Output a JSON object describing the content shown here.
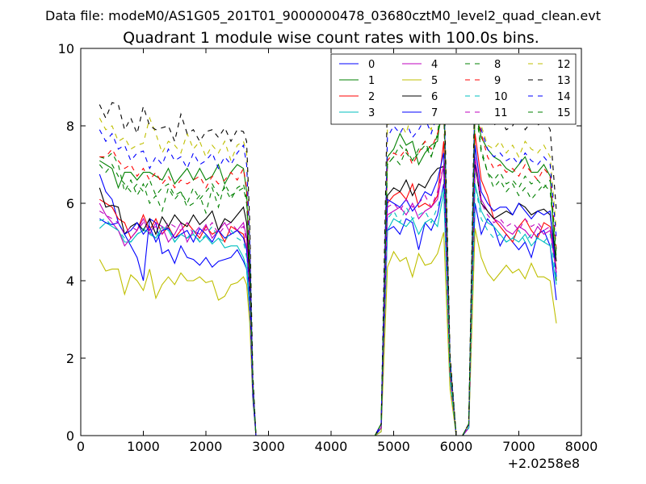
{
  "figure": {
    "suptitle": "Data file: modeM0/AS1G05_201T01_9000000478_03680cztM0_level2_quad_clean.evt"
  },
  "chart_data": {
    "type": "line",
    "title": "Quadrant 1 module wise count rates with 100.0s bins.",
    "xlabel": "",
    "ylabel": "",
    "x_offset_label": "+2.0258e8",
    "xlim": [
      0,
      8000
    ],
    "ylim": [
      0,
      10
    ],
    "x_ticks": [
      0,
      1000,
      2000,
      3000,
      4000,
      5000,
      6000,
      7000,
      8000
    ],
    "y_ticks": [
      0,
      2,
      4,
      6,
      8,
      10
    ],
    "grid": false,
    "legend_position": "top-right",
    "legend_columns": 4,
    "x": [
      300,
      400,
      500,
      600,
      700,
      800,
      900,
      1000,
      1100,
      1200,
      1300,
      1400,
      1500,
      1600,
      1700,
      1800,
      1900,
      2000,
      2100,
      2200,
      2300,
      2400,
      2500,
      2600,
      2650,
      2700,
      2750,
      2800,
      2900,
      3000,
      3500,
      4000,
      4500,
      4700,
      4800,
      4900,
      5000,
      5100,
      5200,
      5300,
      5400,
      5500,
      5600,
      5700,
      5800,
      5900,
      6000,
      6100,
      6200,
      6300,
      6400,
      6500,
      6600,
      6700,
      6800,
      6900,
      7000,
      7100,
      7200,
      7300,
      7400,
      7500,
      7600
    ],
    "series": [
      {
        "name": "0",
        "color": "#0000ff",
        "dash": "solid",
        "values": [
          6.75,
          6.3,
          6.1,
          5.5,
          5.2,
          4.9,
          4.6,
          4.0,
          5.6,
          5.5,
          4.7,
          4.8,
          4.45,
          4.9,
          4.6,
          4.55,
          4.4,
          4.6,
          4.35,
          4.5,
          4.55,
          4.6,
          4.8,
          4.5,
          4.3,
          3.2,
          1.0,
          0,
          0,
          0,
          0,
          0,
          0,
          0,
          0.1,
          5.3,
          5.4,
          5.2,
          5.6,
          5.5,
          4.8,
          5.5,
          5.3,
          5.7,
          6.5,
          1.5,
          0,
          0,
          0.2,
          6.0,
          5.2,
          5.6,
          5.4,
          4.9,
          5.2,
          5.0,
          4.8,
          5.0,
          4.6,
          5.2,
          5.3,
          4.9,
          3.5
        ]
      },
      {
        "name": "1",
        "color": "#008000",
        "dash": "solid",
        "values": [
          7.1,
          7.0,
          6.9,
          6.4,
          6.8,
          6.8,
          6.6,
          6.8,
          6.8,
          6.7,
          6.6,
          6.9,
          6.5,
          6.7,
          6.9,
          6.6,
          6.9,
          6.6,
          6.7,
          7.0,
          6.5,
          6.8,
          7.0,
          6.9,
          6.3,
          4.2,
          1.2,
          0,
          0,
          0,
          0,
          0,
          0,
          0,
          0.3,
          7.2,
          7.4,
          7.8,
          7.5,
          7.6,
          7.0,
          7.3,
          7.5,
          7.6,
          9.0,
          1.8,
          0,
          0,
          0.3,
          8.5,
          7.7,
          7.4,
          7.2,
          7.1,
          6.9,
          6.8,
          7.0,
          7.2,
          6.8,
          6.8,
          7.0,
          6.7,
          4.0
        ]
      },
      {
        "name": "2",
        "color": "#ff0000",
        "dash": "solid",
        "values": [
          6.1,
          6.0,
          5.9,
          5.6,
          5.5,
          5.1,
          5.3,
          5.7,
          5.3,
          5.6,
          5.2,
          5.4,
          5.1,
          5.3,
          5.5,
          5.3,
          5.1,
          5.4,
          5.2,
          5.3,
          5.0,
          5.4,
          5.3,
          5.2,
          4.8,
          3.6,
          1.1,
          0,
          0,
          0,
          0,
          0,
          0,
          0,
          0.2,
          6.0,
          6.2,
          6.3,
          6.1,
          6.5,
          5.9,
          6.0,
          5.9,
          6.2,
          7.6,
          1.6,
          0,
          0,
          0.2,
          7.8,
          6.6,
          6.2,
          5.6,
          5.4,
          5.2,
          5.0,
          5.4,
          5.6,
          5.3,
          5.1,
          5.5,
          5.4,
          4.3
        ]
      },
      {
        "name": "3",
        "color": "#00bfbf",
        "dash": "solid",
        "values": [
          5.35,
          5.5,
          5.4,
          5.3,
          5.0,
          5.0,
          5.2,
          5.3,
          5.25,
          5.1,
          5.4,
          5.3,
          5.0,
          5.2,
          5.1,
          5.2,
          5.0,
          5.15,
          4.95,
          5.1,
          4.85,
          4.9,
          4.9,
          4.6,
          4.3,
          3.3,
          1.0,
          0,
          0,
          0,
          0,
          0,
          0,
          0,
          0.1,
          5.3,
          5.6,
          5.5,
          5.4,
          5.6,
          5.2,
          5.5,
          5.6,
          5.4,
          6.3,
          1.5,
          0,
          0,
          0.2,
          6.5,
          5.8,
          5.5,
          5.4,
          5.2,
          5.0,
          5.1,
          5.0,
          5.2,
          4.9,
          5.1,
          5.0,
          4.9,
          3.9
        ]
      },
      {
        "name": "4",
        "color": "#bf00bf",
        "dash": "solid",
        "values": [
          6.0,
          5.7,
          5.5,
          5.3,
          4.9,
          5.1,
          5.3,
          5.6,
          5.2,
          5.5,
          5.4,
          5.0,
          5.2,
          5.5,
          5.0,
          5.3,
          5.2,
          5.45,
          5.1,
          5.3,
          5.5,
          5.2,
          5.3,
          5.5,
          5.1,
          3.8,
          1.1,
          0,
          0,
          0,
          0,
          0,
          0,
          0,
          0.2,
          5.7,
          5.8,
          5.9,
          5.7,
          6.0,
          5.6,
          5.8,
          5.9,
          6.1,
          7.0,
          1.6,
          0,
          0,
          0.2,
          7.2,
          6.1,
          5.8,
          5.6,
          5.5,
          5.3,
          5.2,
          5.4,
          5.3,
          5.1,
          5.4,
          5.2,
          5.3,
          4.2
        ]
      },
      {
        "name": "5",
        "color": "#bfbf00",
        "dash": "solid",
        "values": [
          4.55,
          4.25,
          4.3,
          4.3,
          3.65,
          4.15,
          4.0,
          3.75,
          4.3,
          3.55,
          3.9,
          4.1,
          3.9,
          4.2,
          4.0,
          4.0,
          4.1,
          3.95,
          4.0,
          3.5,
          3.6,
          3.9,
          3.95,
          4.1,
          3.9,
          2.9,
          0.9,
          0,
          0,
          0,
          0,
          0,
          0,
          0,
          0.1,
          4.35,
          4.75,
          4.5,
          4.6,
          4.1,
          4.7,
          4.4,
          4.45,
          4.7,
          5.25,
          1.2,
          0,
          0,
          0.2,
          5.35,
          4.6,
          4.2,
          4.0,
          4.2,
          4.4,
          4.2,
          4.3,
          4.05,
          4.45,
          4.1,
          4.1,
          4.0,
          2.9
        ]
      },
      {
        "name": "6",
        "color": "#000000",
        "dash": "solid",
        "values": [
          6.4,
          5.9,
          5.95,
          5.9,
          5.2,
          5.4,
          5.5,
          5.3,
          5.6,
          5.2,
          5.65,
          5.4,
          5.7,
          5.5,
          5.4,
          5.7,
          5.45,
          5.6,
          5.8,
          5.3,
          5.6,
          5.5,
          5.7,
          5.9,
          5.5,
          4.0,
          1.2,
          0,
          0,
          0,
          0,
          0,
          0,
          0,
          0.2,
          6.2,
          6.4,
          6.3,
          6.6,
          6.2,
          6.5,
          6.4,
          6.7,
          6.9,
          6.95,
          1.7,
          0,
          0,
          0.3,
          7.0,
          6.0,
          5.8,
          5.6,
          5.7,
          5.8,
          5.7,
          6.0,
          5.9,
          5.7,
          5.8,
          5.85,
          5.7,
          4.5
        ]
      },
      {
        "name": "7",
        "color": "#0000ff",
        "dash": "solid",
        "values": [
          5.6,
          5.5,
          5.45,
          5.5,
          5.2,
          5.3,
          5.5,
          5.2,
          5.4,
          5.0,
          5.3,
          5.35,
          5.1,
          5.2,
          5.3,
          5.0,
          5.35,
          5.2,
          5.0,
          5.3,
          5.1,
          5.2,
          5.3,
          5.1,
          4.8,
          3.5,
          1.0,
          0,
          0,
          0,
          0,
          0,
          0,
          0,
          0.2,
          6.1,
          6.0,
          5.9,
          6.1,
          5.8,
          6.0,
          6.3,
          6.2,
          6.6,
          7.3,
          1.6,
          0,
          0,
          0.2,
          7.5,
          6.3,
          6.0,
          5.8,
          5.9,
          5.9,
          5.7,
          6.0,
          5.8,
          5.6,
          5.8,
          5.7,
          5.8,
          4.1
        ]
      },
      {
        "name": "8",
        "color": "#008000",
        "dash": "dashed",
        "values": [
          7.2,
          7.15,
          7.3,
          7.0,
          6.3,
          6.6,
          6.2,
          6.5,
          6.0,
          6.2,
          5.8,
          6.4,
          6.1,
          6.3,
          5.9,
          6.0,
          6.2,
          5.75,
          6.4,
          5.9,
          6.5,
          6.2,
          6.3,
          6.4,
          6.0,
          4.5,
          1.3,
          0,
          0,
          0,
          0,
          0,
          0,
          0,
          0.3,
          7.0,
          7.2,
          7.5,
          7.3,
          7.1,
          7.4,
          7.6,
          7.2,
          7.8,
          9.0,
          1.9,
          0,
          0,
          0.3,
          8.7,
          7.4,
          6.8,
          6.4,
          6.6,
          6.3,
          6.5,
          6.2,
          6.4,
          6.1,
          6.3,
          6.5,
          6.3,
          4.6
        ]
      },
      {
        "name": "9",
        "color": "#ff0000",
        "dash": "dashed",
        "values": [
          7.2,
          7.2,
          7.4,
          7.1,
          6.9,
          7.0,
          6.7,
          6.9,
          6.6,
          6.8,
          6.5,
          6.7,
          6.4,
          6.6,
          6.5,
          6.6,
          6.7,
          6.4,
          6.7,
          6.5,
          6.6,
          6.8,
          6.6,
          6.9,
          6.4,
          4.6,
          1.3,
          0,
          0,
          0,
          0,
          0,
          0,
          0,
          0.3,
          7.1,
          7.3,
          7.2,
          7.4,
          7.0,
          7.3,
          7.6,
          7.4,
          7.8,
          8.4,
          1.9,
          0,
          0,
          0.3,
          8.6,
          7.8,
          7.2,
          6.9,
          7.0,
          6.8,
          6.9,
          6.7,
          7.0,
          6.8,
          6.6,
          6.9,
          6.7,
          4.8
        ]
      },
      {
        "name": "10",
        "color": "#00bfbf",
        "dash": "dashed",
        "values": [
          5.55,
          5.6,
          5.4,
          5.3,
          5.1,
          5.0,
          5.2,
          5.35,
          5.2,
          5.1,
          5.3,
          5.4,
          5.0,
          5.2,
          5.1,
          5.3,
          5.0,
          5.2,
          5.4,
          5.1,
          5.0,
          5.3,
          5.1,
          5.0,
          4.6,
          3.4,
          1.0,
          0,
          0,
          0,
          0,
          0,
          0,
          0,
          0.2,
          5.6,
          5.8,
          5.5,
          5.9,
          5.6,
          5.7,
          5.8,
          5.5,
          5.9,
          6.4,
          1.5,
          0,
          0,
          0.2,
          6.5,
          5.6,
          5.3,
          5.1,
          5.2,
          5.0,
          5.1,
          5.3,
          5.0,
          5.2,
          5.1,
          5.0,
          5.2,
          4.0
        ]
      },
      {
        "name": "11",
        "color": "#bf00bf",
        "dash": "dashed",
        "values": [
          5.8,
          5.7,
          5.6,
          5.5,
          5.2,
          5.4,
          5.3,
          5.5,
          5.3,
          5.4,
          5.2,
          5.5,
          5.4,
          5.3,
          5.5,
          5.2,
          5.4,
          5.3,
          5.5,
          5.2,
          5.4,
          5.5,
          5.3,
          5.4,
          5.0,
          3.7,
          1.1,
          0,
          0,
          0,
          0,
          0,
          0,
          0,
          0.2,
          5.9,
          6.0,
          5.8,
          6.1,
          5.9,
          6.0,
          6.2,
          5.9,
          6.3,
          7.0,
          1.6,
          0,
          0,
          0.2,
          7.1,
          6.0,
          5.7,
          5.5,
          5.6,
          5.4,
          5.5,
          5.3,
          5.6,
          5.4,
          5.5,
          5.3,
          5.4,
          4.2
        ]
      },
      {
        "name": "12",
        "color": "#bfbf00",
        "dash": "dashed",
        "values": [
          8.2,
          7.9,
          8.0,
          7.6,
          7.7,
          7.4,
          7.5,
          7.55,
          8.2,
          7.8,
          7.3,
          7.6,
          7.5,
          7.3,
          7.8,
          7.4,
          7.6,
          7.2,
          7.5,
          7.3,
          7.6,
          7.1,
          7.5,
          7.6,
          7.3,
          5.2,
          1.5,
          0,
          0,
          0,
          0,
          0,
          0,
          0,
          0.3,
          8.0,
          8.3,
          8.1,
          7.8,
          8.4,
          8.0,
          8.2,
          7.9,
          8.6,
          9.6,
          2.0,
          0,
          0,
          0.3,
          9.3,
          8.0,
          7.5,
          7.4,
          7.6,
          7.3,
          7.5,
          7.2,
          7.6,
          7.4,
          7.3,
          7.5,
          7.2,
          5.3
        ]
      },
      {
        "name": "13",
        "color": "#000000",
        "dash": "dashed",
        "values": [
          8.55,
          8.2,
          8.6,
          8.55,
          7.9,
          8.2,
          7.8,
          8.5,
          8.0,
          7.9,
          7.95,
          8.0,
          7.6,
          8.3,
          7.8,
          7.9,
          7.6,
          7.85,
          7.9,
          7.7,
          7.95,
          7.6,
          7.9,
          7.85,
          7.6,
          5.5,
          1.6,
          0,
          0,
          0,
          0,
          0,
          0,
          0,
          0.3,
          8.8,
          8.6,
          8.9,
          8.5,
          8.7,
          8.8,
          8.9,
          8.6,
          9.0,
          9.4,
          2.1,
          0,
          0,
          0.3,
          9.5,
          8.4,
          8.1,
          8.0,
          8.2,
          7.9,
          8.0,
          8.3,
          7.9,
          8.1,
          8.0,
          8.2,
          7.9,
          5.8
        ]
      },
      {
        "name": "14",
        "color": "#0000ff",
        "dash": "dashed",
        "values": [
          7.9,
          7.6,
          7.8,
          7.4,
          7.5,
          7.1,
          7.3,
          7.35,
          6.9,
          7.2,
          7.0,
          7.4,
          7.1,
          7.2,
          6.9,
          7.3,
          7.0,
          7.1,
          7.3,
          6.9,
          7.2,
          7.0,
          7.3,
          7.5,
          7.0,
          5.0,
          1.4,
          0,
          0,
          0,
          0,
          0,
          0,
          0,
          0.3,
          7.7,
          8.0,
          7.8,
          8.1,
          7.7,
          7.9,
          8.2,
          7.8,
          8.3,
          9.0,
          2.0,
          0,
          0,
          0.3,
          9.1,
          7.9,
          7.4,
          7.2,
          7.3,
          7.1,
          7.2,
          7.0,
          7.3,
          7.1,
          7.0,
          7.2,
          7.0,
          5.1
        ]
      },
      {
        "name": "15",
        "color": "#008000",
        "dash": "dashed",
        "values": [
          7.0,
          6.8,
          7.0,
          6.7,
          6.5,
          6.3,
          6.5,
          6.3,
          6.6,
          6.2,
          6.4,
          6.5,
          6.2,
          6.3,
          6.0,
          6.4,
          6.1,
          6.3,
          6.5,
          6.2,
          6.4,
          6.1,
          6.4,
          6.5,
          6.1,
          4.4,
          1.3,
          0,
          0,
          0,
          0,
          0,
          0,
          0,
          0.3,
          7.0,
          7.2,
          7.0,
          7.4,
          7.1,
          7.3,
          7.5,
          7.2,
          7.7,
          8.6,
          1.8,
          0,
          0,
          0.3,
          8.6,
          7.3,
          6.8,
          6.6,
          6.8,
          6.5,
          6.6,
          6.4,
          6.7,
          6.5,
          6.6,
          6.4,
          6.6,
          4.7
        ]
      }
    ]
  }
}
